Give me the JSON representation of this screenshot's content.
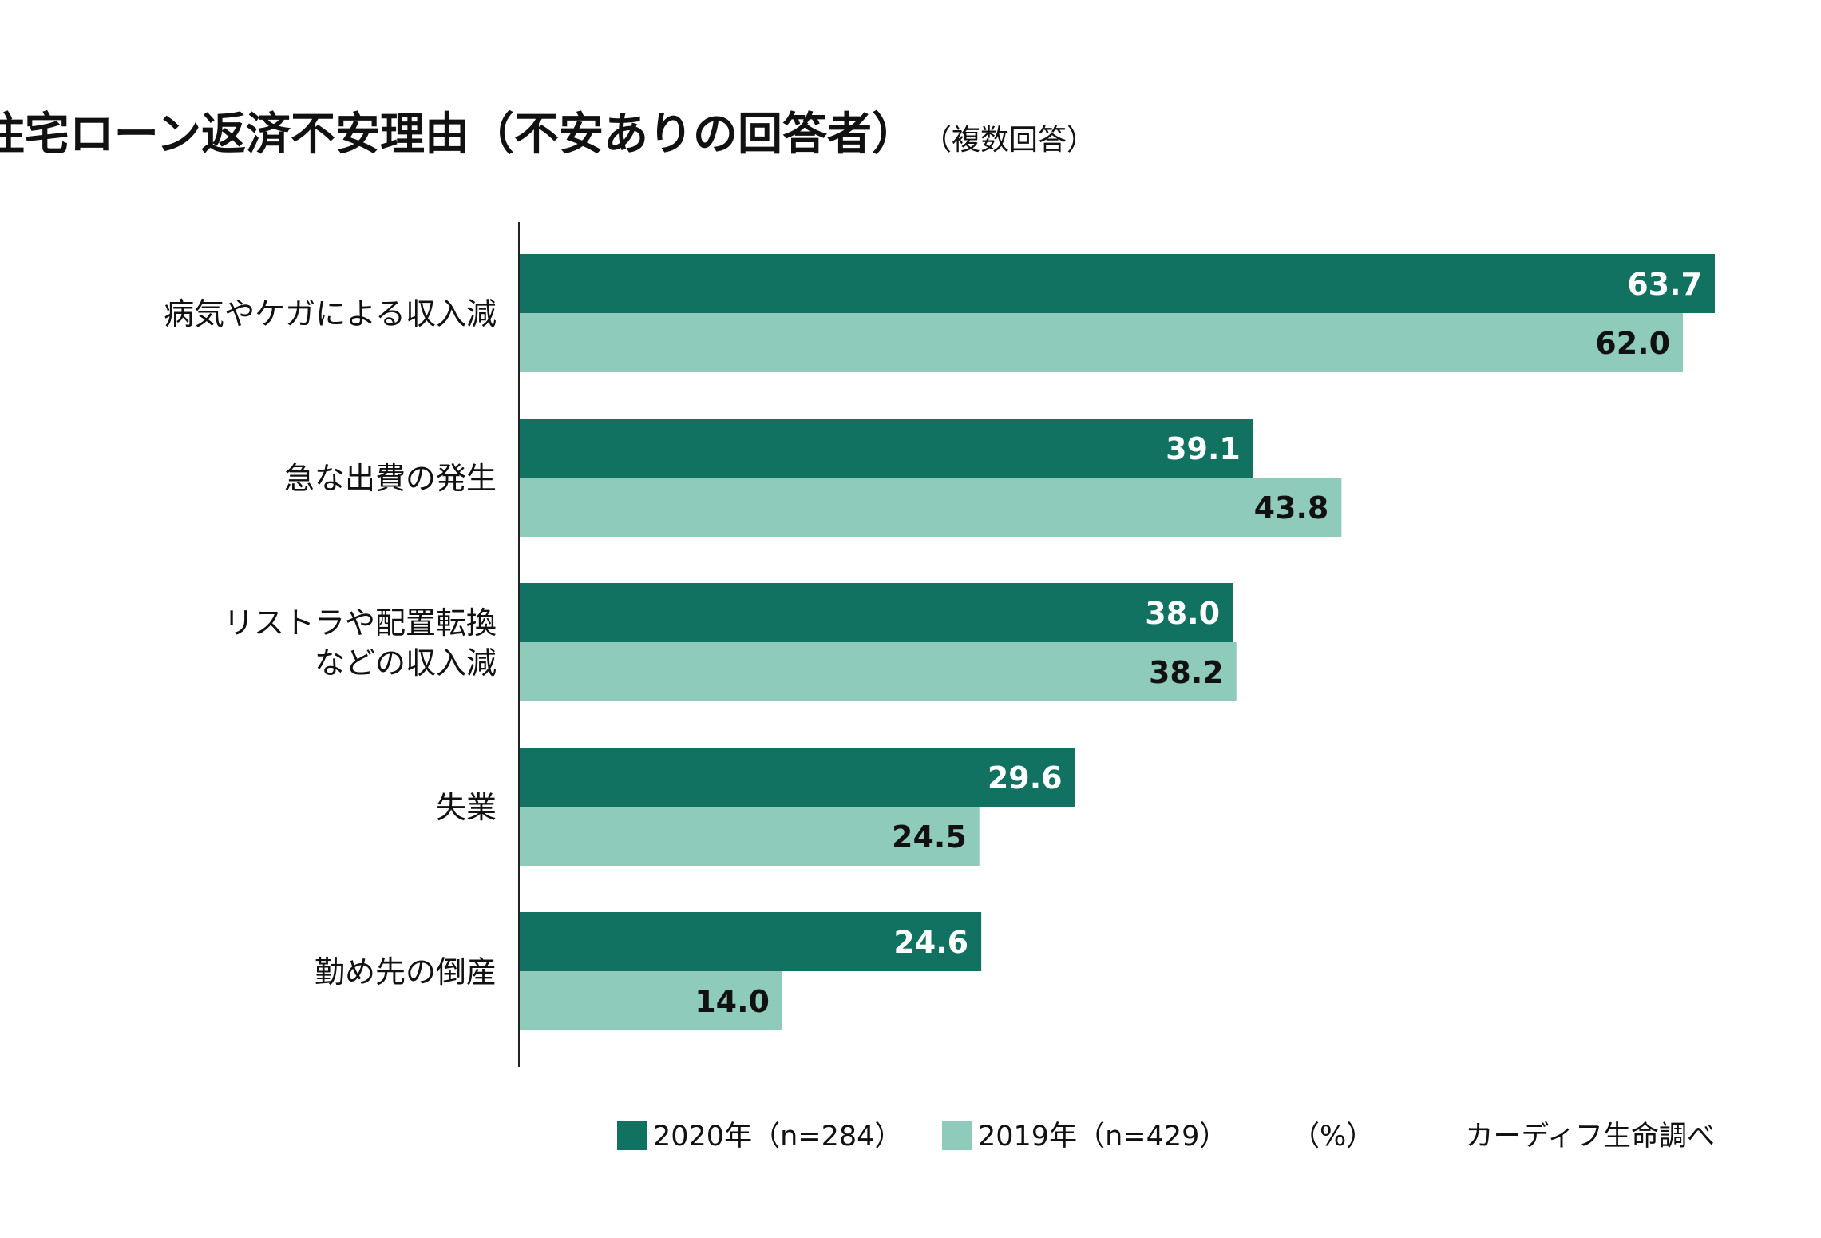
{
  "chart_data": {
    "type": "bar",
    "orientation": "horizontal",
    "title": "住宅ローン返済不安理由（不安ありの回答者）",
    "subtitle": "（複数回答）",
    "categories": [
      [
        "病気やケガによる収入減"
      ],
      [
        "急な出費の発生"
      ],
      [
        "リストラや配置転換",
        "などの収入減"
      ],
      [
        "失業"
      ],
      [
        "勤め先の倒産"
      ]
    ],
    "series": [
      {
        "name": "2020年（n=284）",
        "color": "#127262",
        "label_color": "#ffffff",
        "values": [
          63.7,
          39.1,
          38.0,
          29.6,
          24.6
        ]
      },
      {
        "name": "2019年（n=429）",
        "color": "#8ecbba",
        "label_color": "#111111",
        "values": [
          62.0,
          43.8,
          38.2,
          24.5,
          14.0
        ]
      }
    ],
    "unit_label": "（%）",
    "source": "カーディフ生命調べ",
    "xlim": [
      0,
      63.7
    ],
    "grid": false,
    "legend_position": "bottom"
  }
}
